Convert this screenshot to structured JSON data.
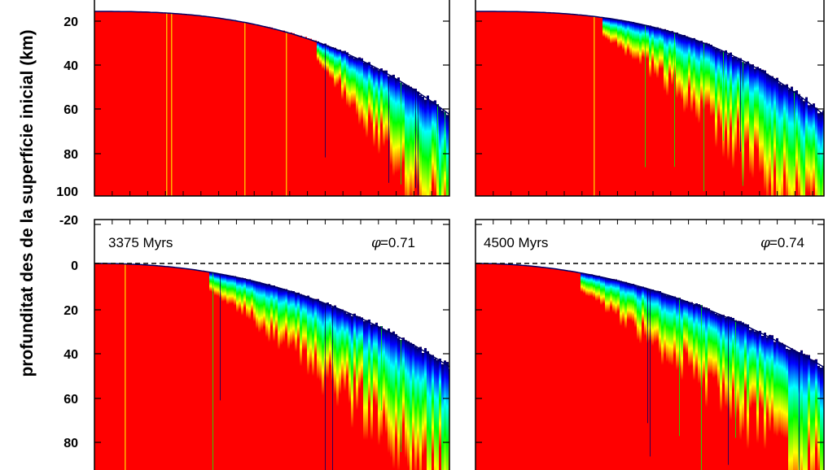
{
  "chart_data": {
    "type": "heatmap",
    "ylabel": "profunditat des de la superfície inicial (km)",
    "y_tick_labels": [
      "-20",
      "0",
      "20",
      "40",
      "60",
      "80",
      "100"
    ],
    "colors": {
      "deep": "#ff0000",
      "mid_1": "#ffff00",
      "mid_2": "#00ff00",
      "mid_3": "#00ffff",
      "mid_4": "#0000ff",
      "surface": "#000066",
      "background": "#ffffff"
    },
    "panels": [
      {
        "id": "top-left",
        "time": "",
        "phi": "",
        "ylim": [
          -20,
          100
        ],
        "red_fraction": 0.62,
        "curve_power": 2.6,
        "ymax_bottom": 100
      },
      {
        "id": "top-right",
        "time": "",
        "phi": "",
        "ylim": [
          -20,
          100
        ],
        "red_fraction": 0.36,
        "curve_power": 2.8,
        "ymax_bottom": 100
      },
      {
        "id": "bottom-left",
        "time": "3375 Myrs",
        "phi": "=0.71",
        "ylim": [
          -20,
          100
        ],
        "red_fraction": 0.32,
        "curve_power": 2.2,
        "ymax_bottom": 100
      },
      {
        "id": "bottom-right",
        "time": "4500 Myrs",
        "phi": "=0.74",
        "ylim": [
          -20,
          100
        ],
        "red_fraction": 0.3,
        "curve_power": 2.0,
        "ymax_bottom": 100
      }
    ]
  }
}
